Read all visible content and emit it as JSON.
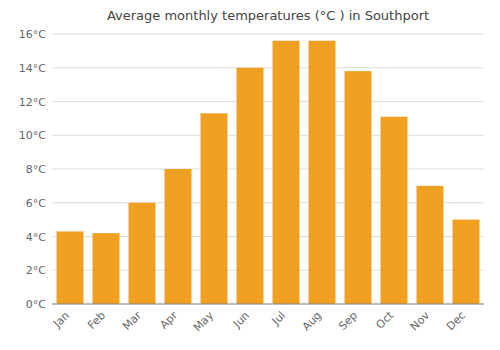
{
  "chart_data": {
    "type": "bar",
    "title": "Average monthly temperatures (°C ) in Southport",
    "categories": [
      "Jan",
      "Feb",
      "Mar",
      "Apr",
      "May",
      "Jun",
      "Jul",
      "Aug",
      "Sep",
      "Oct",
      "Nov",
      "Dec"
    ],
    "values": [
      4.3,
      4.2,
      6.0,
      8.0,
      11.3,
      14.0,
      15.6,
      15.6,
      13.8,
      11.1,
      7.0,
      5.0
    ],
    "color": "#F0A020",
    "ylim": [
      0,
      16
    ],
    "yticks": [
      {
        "value": 0,
        "label": "0°C"
      },
      {
        "value": 2,
        "label": "2°C"
      },
      {
        "value": 4,
        "label": "4°C"
      },
      {
        "value": 6,
        "label": "6°C"
      },
      {
        "value": 8,
        "label": "8°C"
      },
      {
        "value": 10,
        "label": "10°C"
      },
      {
        "value": 12,
        "label": "12°C"
      },
      {
        "value": 14,
        "label": "14°C"
      },
      {
        "value": 16,
        "label": "16°C"
      }
    ],
    "grid": true
  }
}
